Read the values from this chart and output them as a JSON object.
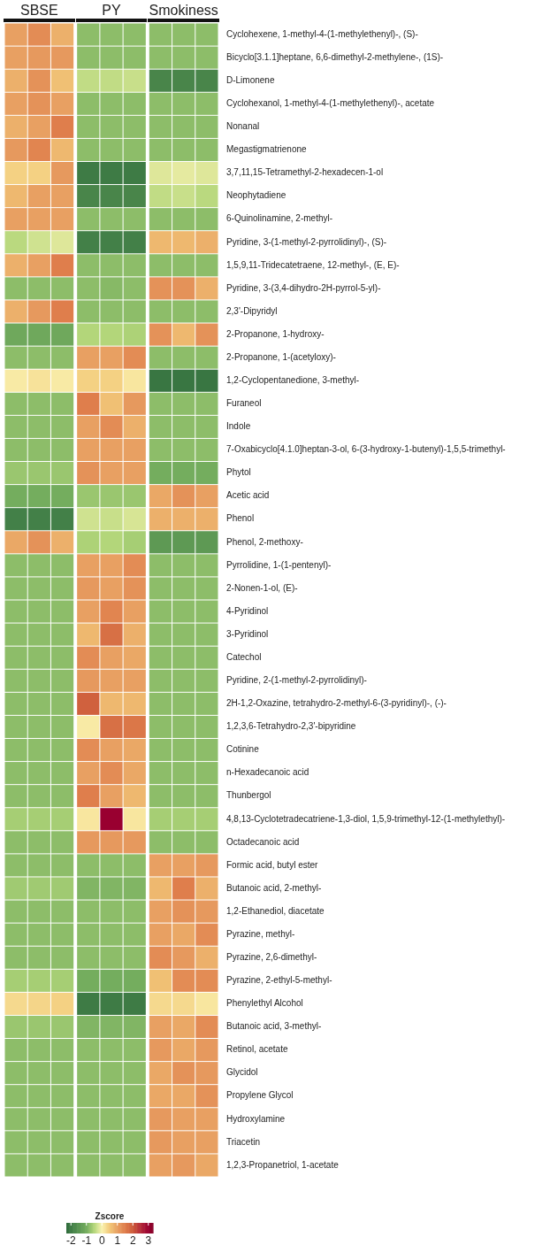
{
  "chart_data": {
    "type": "heatmap",
    "annotations": [
      "SBSE",
      "PY",
      "Smokiness"
    ],
    "categories": [
      null,
      null,
      null,
      null,
      null,
      null,
      null,
      null,
      null
    ],
    "tick_labels": "y",
    "clim": [
      -2.3,
      3.3
    ],
    "cticks": [
      -2,
      -1,
      0,
      1,
      2,
      3
    ],
    "clabel": "Zscore",
    "y_categories": [
      "Cyclohexene, 1-methyl-4-(1-methylethenyl)-, (S)-",
      "Bicyclo[3.1.1]heptane, 6,6-dimethyl-2-methylene-, (1S)-",
      "D-Limonene",
      "Cyclohexanol, 1-methyl-4-(1-methylethenyl)-, acetate",
      "Nonanal",
      "Megastigmatrienone",
      "3,7,11,15-Tetramethyl-2-hexadecen-1-ol",
      "Neophytadiene",
      "6-Quinolinamine, 2-methyl-",
      "Pyridine, 3-(1-methyl-2-pyrrolidinyl)-, (S)-",
      "1,5,9,11-Tridecatetraene, 12-methyl-, (E, E)-",
      "Pyridine, 3-(3,4-dihydro-2H-pyrrol-5-yl)-",
      "2,3'-Dipyridyl",
      "2-Propanone, 1-hydroxy-",
      "2-Propanone, 1-(acetyloxy)-",
      "1,2-Cyclopentanedione, 3-methyl-",
      "Furaneol",
      "Indole",
      "7-Oxabicyclo[4.1.0]heptan-3-ol, 6-(3-hydroxy-1-butenyl)-1,5,5-trimethyl-",
      "Phytol",
      "Acetic acid",
      "Phenol",
      "Phenol, 2-methoxy-",
      "Pyrrolidine, 1-(1-pentenyl)-",
      "2-Nonen-1-ol, (E)-",
      "4-Pyridinol",
      "3-Pyridinol",
      "Catechol",
      "Pyridine, 2-(1-methyl-2-pyrrolidinyl)-",
      "2H-1,2-Oxazine, tetrahydro-2-methyl-6-(3-pyridinyl)-, (-)-",
      "1,2,3,6-Tetrahydro-2,3'-bipyridine",
      "Cotinine",
      "n-Hexadecanoic acid",
      "Thunbergol",
      "4,8,13-Cyclotetradecatriene-1,3-diol, 1,5,9-trimethyl-12-(1-methylethyl)-",
      "Octadecanoic acid",
      "Formic acid, butyl ester",
      "Butanoic acid, 2-methyl-",
      "1,2-Ethanediol, diacetate",
      "Pyrazine, methyl-",
      "Pyrazine, 2,6-dimethyl-",
      "Pyrazine, 2-ethyl-5-methyl-",
      "Phenylethyl Alcohol",
      "Butanoic acid, 3-methyl-",
      "Retinol, acetate",
      "Glycidol",
      "Propylene Glycol",
      "Hydroxylamine",
      "Triacetin",
      "1,2,3-Propanetriol, 1-acetate"
    ],
    "cells": [
      [
        1.0,
        1.3,
        0.8,
        -0.8,
        -0.8,
        -0.8,
        -0.8,
        -0.8,
        -0.8
      ],
      [
        1.0,
        1.1,
        1.1,
        -0.8,
        -0.8,
        -0.8,
        -0.8,
        -0.8,
        -0.8
      ],
      [
        0.8,
        1.2,
        0.6,
        -0.4,
        -0.4,
        -0.35,
        -1.8,
        -1.8,
        -1.8
      ],
      [
        1.0,
        1.2,
        1.0,
        -0.8,
        -0.8,
        -0.8,
        -0.8,
        -0.8,
        -0.8
      ],
      [
        0.8,
        1.0,
        1.5,
        -0.8,
        -0.8,
        -0.8,
        -0.8,
        -0.8,
        -0.8
      ],
      [
        1.1,
        1.4,
        0.7,
        -0.8,
        -0.8,
        -0.8,
        -0.8,
        -0.8,
        -0.8
      ],
      [
        0.4,
        0.4,
        1.1,
        -2.0,
        -2.0,
        -2.0,
        -0.2,
        -0.15,
        -0.2
      ],
      [
        0.7,
        1.0,
        1.0,
        -1.8,
        -1.8,
        -1.8,
        -0.4,
        -0.35,
        -0.45
      ],
      [
        1.0,
        1.0,
        1.0,
        -0.8,
        -0.8,
        -0.8,
        -0.8,
        -0.8,
        -0.8
      ],
      [
        -0.45,
        -0.3,
        -0.2,
        -1.9,
        -1.9,
        -1.9,
        0.7,
        0.7,
        0.8
      ],
      [
        0.8,
        1.0,
        1.5,
        -0.8,
        -0.8,
        -0.8,
        -0.8,
        -0.8,
        -0.8
      ],
      [
        -0.8,
        -0.8,
        -0.8,
        -0.8,
        -0.85,
        -0.8,
        1.2,
        1.2,
        0.8
      ],
      [
        0.8,
        1.1,
        1.5,
        -0.8,
        -0.8,
        -0.8,
        -0.8,
        -0.8,
        -0.8
      ],
      [
        -1.1,
        -1.1,
        -1.1,
        -0.5,
        -0.5,
        -0.55,
        1.2,
        0.7,
        1.2
      ],
      [
        -0.8,
        -0.8,
        -0.8,
        1.0,
        1.0,
        1.3,
        -0.8,
        -0.8,
        -0.8
      ],
      [
        0.1,
        0.2,
        0.1,
        0.4,
        0.4,
        0.15,
        -2.1,
        -2.1,
        -2.1
      ],
      [
        -0.8,
        -0.8,
        -0.8,
        1.5,
        0.6,
        1.1,
        -0.8,
        -0.8,
        -0.8
      ],
      [
        -0.8,
        -0.8,
        -0.8,
        1.0,
        1.3,
        0.8,
        -0.8,
        -0.8,
        -0.8
      ],
      [
        -0.8,
        -0.8,
        -0.8,
        1.0,
        1.0,
        1.0,
        -0.8,
        -0.8,
        -0.8
      ],
      [
        -0.7,
        -0.7,
        -0.7,
        1.2,
        1.0,
        1.0,
        -1.0,
        -1.0,
        -1.0
      ],
      [
        -1.0,
        -1.0,
        -1.0,
        -0.7,
        -0.7,
        -0.7,
        0.9,
        1.2,
        1.0
      ],
      [
        -1.9,
        -1.9,
        -1.9,
        -0.3,
        -0.35,
        -0.25,
        0.8,
        0.8,
        0.8
      ],
      [
        0.9,
        1.2,
        0.8,
        -0.55,
        -0.5,
        -0.6,
        -1.4,
        -1.4,
        -1.4
      ],
      [
        -0.8,
        -0.8,
        -0.8,
        1.0,
        1.0,
        1.3,
        -0.8,
        -0.8,
        -0.8
      ],
      [
        -0.8,
        -0.8,
        -0.8,
        1.1,
        1.0,
        1.2,
        -0.8,
        -0.8,
        -0.8
      ],
      [
        -0.8,
        -0.8,
        -0.8,
        1.0,
        1.4,
        1.0,
        -0.8,
        -0.8,
        -0.8
      ],
      [
        -0.8,
        -0.8,
        -0.8,
        0.7,
        1.7,
        0.8,
        -0.8,
        -0.8,
        -0.8
      ],
      [
        -0.8,
        -0.8,
        -0.8,
        1.3,
        1.0,
        0.9,
        -0.8,
        -0.8,
        -0.8
      ],
      [
        -0.8,
        -0.8,
        -0.8,
        1.1,
        1.0,
        1.0,
        -0.8,
        -0.8,
        -0.8
      ],
      [
        -0.8,
        -0.8,
        -0.8,
        1.9,
        0.7,
        0.7,
        -0.8,
        -0.8,
        -0.8
      ],
      [
        -0.8,
        -0.8,
        -0.8,
        0.1,
        1.7,
        1.6,
        -0.8,
        -0.8,
        -0.8
      ],
      [
        -0.8,
        -0.8,
        -0.8,
        1.3,
        1.0,
        0.9,
        -0.8,
        -0.8,
        -0.8
      ],
      [
        -0.8,
        -0.8,
        -0.8,
        1.0,
        1.3,
        0.9,
        -0.8,
        -0.8,
        -0.8
      ],
      [
        -0.8,
        -0.8,
        -0.8,
        1.5,
        1.0,
        0.7,
        -0.8,
        -0.8,
        -0.8
      ],
      [
        -0.6,
        -0.6,
        -0.6,
        0.15,
        3.0,
        0.15,
        -0.6,
        -0.6,
        -0.6
      ],
      [
        -0.8,
        -0.8,
        -0.8,
        1.1,
        1.1,
        1.1,
        -0.8,
        -0.8,
        -0.8
      ],
      [
        -0.8,
        -0.8,
        -0.8,
        -0.8,
        -0.8,
        -0.8,
        1.0,
        1.0,
        1.1
      ],
      [
        -0.65,
        -0.65,
        -0.65,
        -0.9,
        -0.9,
        -0.9,
        0.7,
        1.5,
        0.8
      ],
      [
        -0.8,
        -0.8,
        -0.8,
        -0.8,
        -0.8,
        -0.8,
        1.0,
        1.2,
        1.1
      ],
      [
        -0.8,
        -0.8,
        -0.8,
        -0.8,
        -0.8,
        -0.8,
        1.0,
        0.9,
        1.3
      ],
      [
        -0.8,
        -0.8,
        -0.8,
        -0.8,
        -0.8,
        -0.8,
        1.3,
        1.1,
        0.8
      ],
      [
        -0.6,
        -0.6,
        -0.6,
        -1.0,
        -1.0,
        -1.0,
        0.6,
        1.3,
        1.3
      ],
      [
        0.3,
        0.35,
        0.4,
        -2.0,
        -2.0,
        -2.0,
        0.3,
        0.3,
        0.15
      ],
      [
        -0.7,
        -0.7,
        -0.7,
        -0.9,
        -0.9,
        -0.9,
        1.0,
        0.9,
        1.3
      ],
      [
        -0.8,
        -0.8,
        -0.8,
        -0.8,
        -0.8,
        -0.8,
        1.1,
        0.9,
        1.1
      ],
      [
        -0.8,
        -0.8,
        -0.8,
        -0.8,
        -0.8,
        -0.8,
        0.9,
        1.2,
        1.1
      ],
      [
        -0.8,
        -0.8,
        -0.8,
        -0.8,
        -0.8,
        -0.8,
        0.9,
        0.9,
        1.2
      ],
      [
        -0.8,
        -0.8,
        -0.8,
        -0.8,
        -0.8,
        -0.8,
        1.1,
        1.0,
        1.0
      ],
      [
        -0.8,
        -0.8,
        -0.8,
        -0.8,
        -0.8,
        -0.8,
        1.1,
        1.0,
        1.0
      ],
      [
        -0.8,
        -0.8,
        -0.8,
        -0.8,
        -0.8,
        -0.8,
        1.0,
        1.1,
        0.9
      ]
    ]
  }
}
